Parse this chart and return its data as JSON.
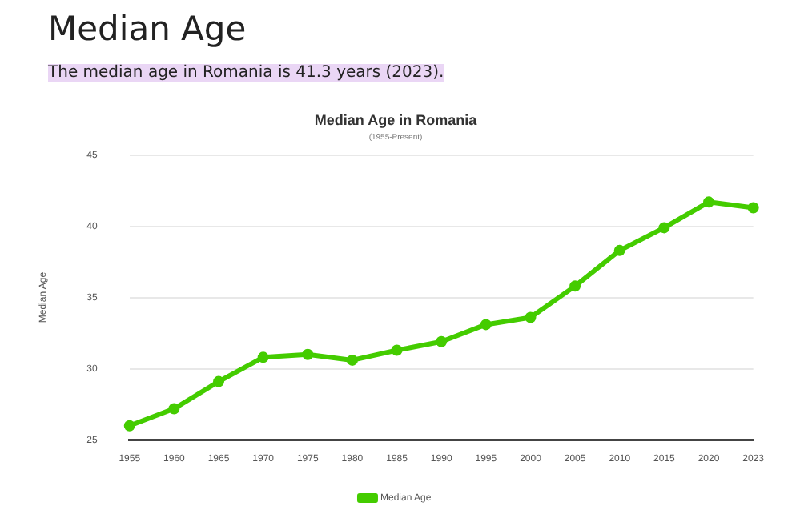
{
  "chart_data": {
    "type": "line",
    "title": "Median Age in Romania",
    "subtitle": "(1955-Present)",
    "ylabel": "Median Age",
    "annotations": [
      "Median Age",
      "The median age in Romania is 41.3 years (2023)."
    ],
    "categories": [
      "1955",
      "1960",
      "1965",
      "1970",
      "1975",
      "1980",
      "1985",
      "1990",
      "1995",
      "2000",
      "2005",
      "2010",
      "2015",
      "2020",
      "2023"
    ],
    "series": [
      {
        "name": "Median Age",
        "color": "#44cc00",
        "values": [
          26.0,
          27.2,
          29.1,
          30.8,
          31.0,
          30.6,
          31.3,
          31.9,
          33.1,
          33.6,
          35.8,
          38.3,
          39.9,
          41.7,
          41.3
        ]
      }
    ],
    "ylim": [
      25,
      45
    ],
    "yticks": [
      25,
      30,
      35,
      40,
      45
    ],
    "grid": "y",
    "legend": "bottom",
    "marker": "circle",
    "line_style": "solid"
  }
}
